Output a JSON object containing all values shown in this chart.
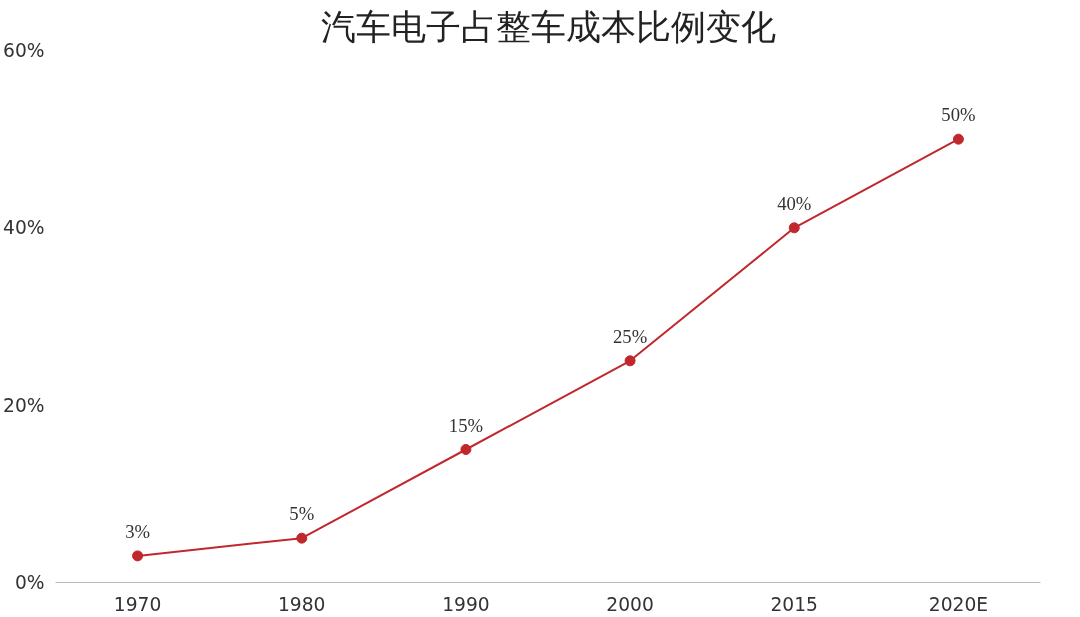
{
  "chart_data": {
    "type": "line",
    "title": "汽车电子占整车成本比例变化",
    "categories": [
      "1970",
      "1980",
      "1990",
      "2000",
      "2015",
      "2020E"
    ],
    "series": [
      {
        "color": "#c0282d",
        "values": [
          3,
          5,
          15,
          25,
          40,
          50
        ],
        "value_labels": [
          "3%",
          "5%",
          "15%",
          "25%",
          "40%",
          "50%"
        ]
      }
    ],
    "ylim": [
      0,
      60
    ],
    "yticks": [
      {
        "value": 0,
        "label": "0%"
      },
      {
        "value": 20,
        "label": "20%"
      },
      {
        "value": 40,
        "label": "40%"
      },
      {
        "value": 60,
        "label": "60%"
      }
    ],
    "grid": false,
    "marker": "circle",
    "line_style": "solid"
  }
}
